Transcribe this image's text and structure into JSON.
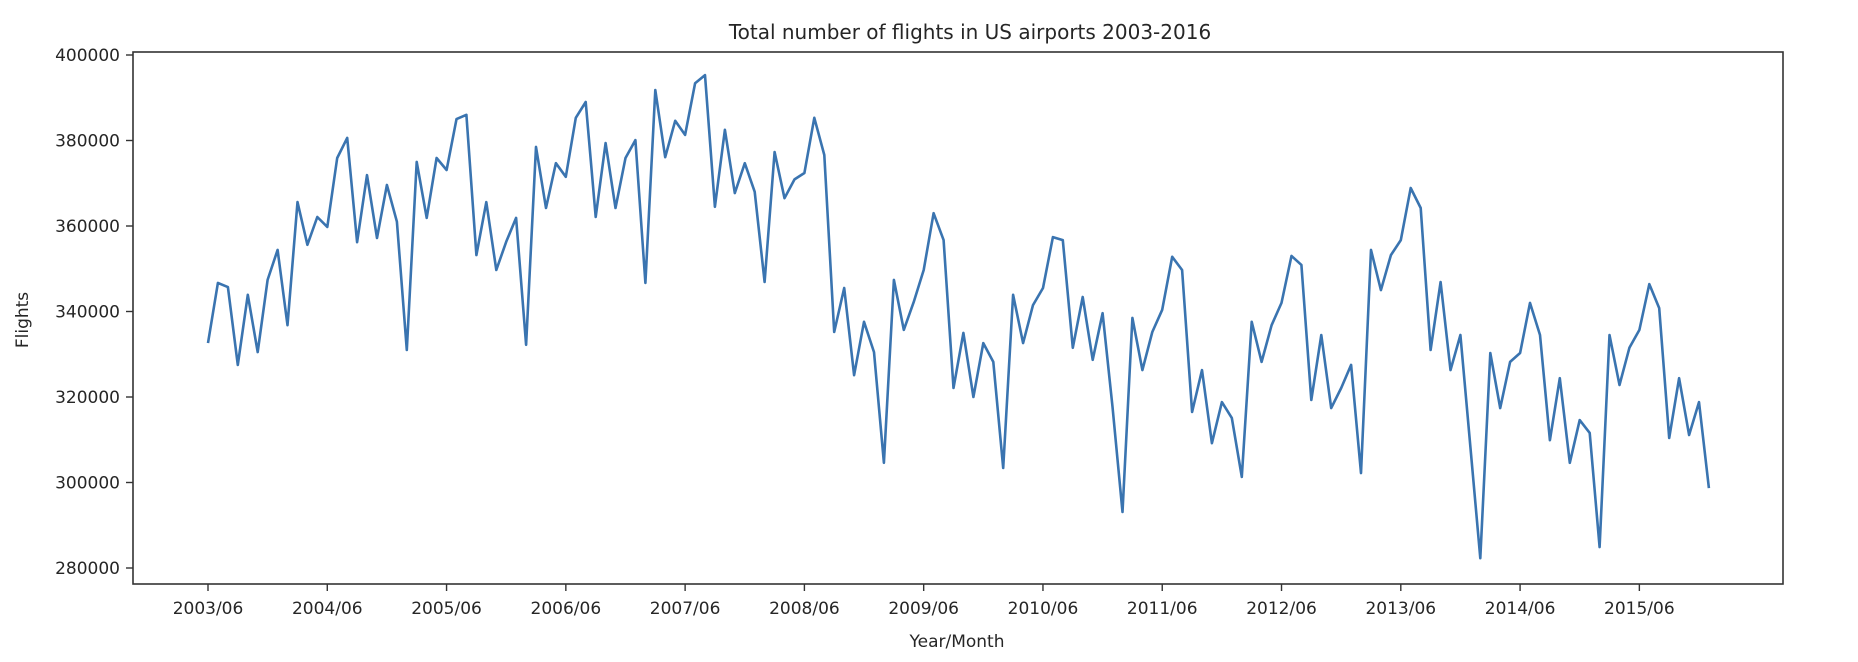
{
  "chart_data": {
    "type": "line",
    "title": "Total number of flights in US airports 2003-2016",
    "xlabel": "Year/Month",
    "ylabel": "Flights",
    "x_start": "2003/06",
    "x_end": "2016/01",
    "x_tick_labels": [
      "2003/06",
      "2004/06",
      "2005/06",
      "2006/06",
      "2007/06",
      "2008/06",
      "2009/06",
      "2010/06",
      "2011/06",
      "2012/06",
      "2013/06",
      "2014/06",
      "2015/06"
    ],
    "y_tick_labels": [
      "280000",
      "300000",
      "320000",
      "340000",
      "360000",
      "380000",
      "400000"
    ],
    "y_ticks": [
      280000,
      300000,
      320000,
      340000,
      360000,
      380000,
      400000
    ],
    "ylim": [
      276500,
      400800
    ],
    "grid": false,
    "legend": null,
    "series": [
      {
        "name": "Flights",
        "color": "#3a74b0",
        "values": [
          332600,
          346700,
          345700,
          327500,
          343900,
          330500,
          347400,
          354400,
          336800,
          365600,
          355600,
          362100,
          359800,
          375900,
          380600,
          356200,
          371900,
          357200,
          369600,
          361000,
          331000,
          375000,
          361900,
          375900,
          373100,
          385000,
          386000,
          353200,
          365600,
          349700,
          356300,
          361900,
          332200,
          378500,
          364200,
          374700,
          371500,
          385300,
          389000,
          362100,
          379400,
          364200,
          375900,
          380100,
          346700,
          391800,
          376100,
          384600,
          381300,
          393400,
          395300,
          364500,
          382500,
          367700,
          374700,
          368000,
          346900,
          377300,
          366500,
          370900,
          372400,
          385300,
          376600,
          335200,
          345500,
          325100,
          337600,
          330500,
          304600,
          347400,
          335700,
          342200,
          349700,
          363000,
          356700,
          322100,
          335000,
          320000,
          332600,
          328200,
          303400,
          343900,
          332600,
          341500,
          345500,
          357400,
          356700,
          331500,
          343400,
          328700,
          339600,
          317700,
          293100,
          338500,
          326300,
          335200,
          340400,
          352800,
          349700,
          316500,
          326300,
          309200,
          318800,
          315100,
          301300,
          337600,
          328200,
          336800,
          342000,
          353000,
          350900,
          319300,
          334500,
          317400,
          322100,
          327500,
          302200,
          354400,
          345000,
          353200,
          356700,
          368900,
          364200,
          331000,
          346900,
          326300,
          334500,
          308300,
          282300,
          330300,
          317400,
          328200,
          330300,
          342000,
          334500,
          309900,
          324400,
          304600,
          314600,
          311600,
          284900,
          334500,
          322800,
          331500,
          335700,
          346400,
          340800,
          310400,
          324400,
          311100,
          318800,
          298700
        ]
      }
    ]
  }
}
